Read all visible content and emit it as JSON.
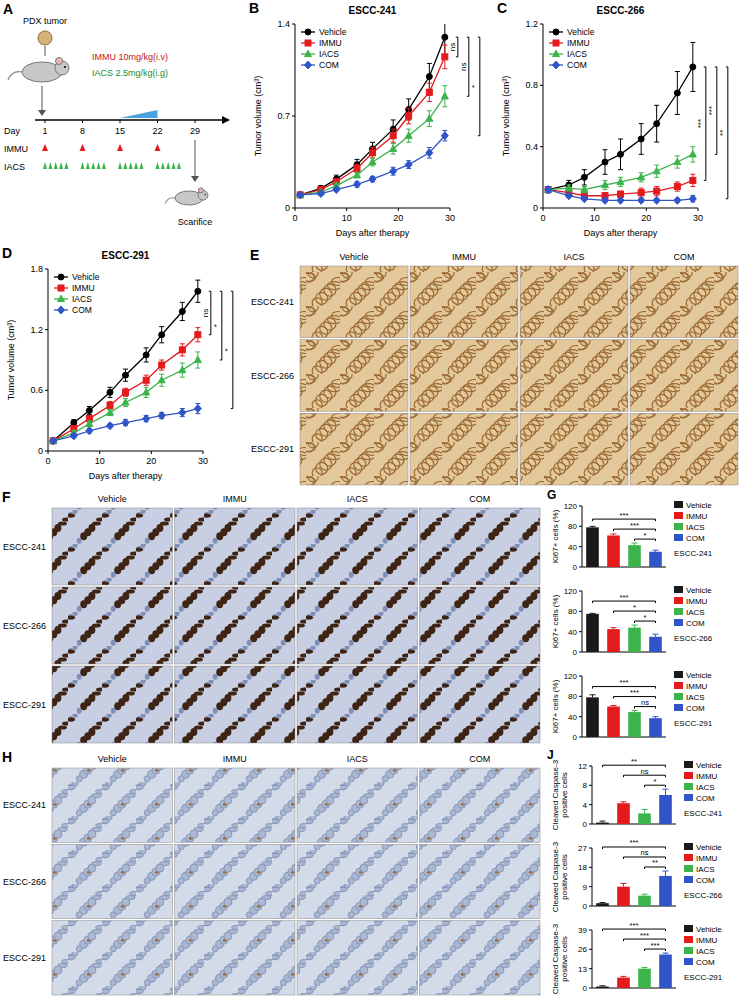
{
  "schematic": {
    "panel": "A",
    "title": "PDX tumor",
    "doses": [
      "IMMU 10mg/kg(i.v)",
      "IACS 2.5mg/kg(i.g)"
    ],
    "day_label": "Day",
    "days": [
      1,
      8,
      15,
      22,
      29
    ],
    "rows": [
      "IMMU",
      "IACS"
    ],
    "immu_days": [
      1,
      8,
      15,
      22
    ],
    "iacs_days": [
      1,
      2,
      3,
      4,
      5,
      8,
      9,
      10,
      11,
      12,
      15,
      16,
      17,
      18,
      19,
      22,
      23,
      24,
      25,
      26
    ],
    "end_label": "Scarifice"
  },
  "chart_data": [
    {
      "panel": "B",
      "type": "line",
      "title": "ESCC-241",
      "x_label": "Days after therapy",
      "y_label": "Tumor volume (cm³)",
      "x": [
        1,
        5,
        8,
        12,
        15,
        19,
        22,
        26,
        29
      ],
      "xlim": [
        0,
        30
      ],
      "xticks": [
        0,
        10,
        20,
        30
      ],
      "ylim": [
        0,
        1.4
      ],
      "yticks": [
        0,
        0.7,
        1.4
      ],
      "legend": "upper left",
      "series": [
        {
          "name": "Vehicle",
          "color": "#000000",
          "marker": "circle",
          "values": [
            0.1,
            0.15,
            0.22,
            0.33,
            0.45,
            0.6,
            0.75,
            1.0,
            1.3
          ],
          "errors": [
            0.01,
            0.02,
            0.03,
            0.04,
            0.05,
            0.07,
            0.08,
            0.1,
            0.15
          ]
        },
        {
          "name": "IMMU",
          "color": "#e41a1c",
          "marker": "square",
          "values": [
            0.1,
            0.14,
            0.2,
            0.3,
            0.42,
            0.55,
            0.7,
            0.88,
            1.15
          ],
          "errors": [
            0.01,
            0.02,
            0.02,
            0.03,
            0.04,
            0.05,
            0.06,
            0.07,
            0.09
          ]
        },
        {
          "name": "IACS",
          "color": "#3cb44b",
          "marker": "triangle",
          "values": [
            0.1,
            0.12,
            0.17,
            0.25,
            0.35,
            0.45,
            0.55,
            0.68,
            0.85
          ],
          "errors": [
            0.01,
            0.01,
            0.02,
            0.02,
            0.03,
            0.04,
            0.05,
            0.06,
            0.08
          ]
        },
        {
          "name": "COM",
          "color": "#2f55c8",
          "marker": "diamond",
          "values": [
            0.1,
            0.11,
            0.14,
            0.18,
            0.22,
            0.28,
            0.33,
            0.42,
            0.55
          ],
          "errors": [
            0.01,
            0.01,
            0.01,
            0.02,
            0.02,
            0.03,
            0.03,
            0.04,
            0.04
          ]
        }
      ],
      "annotations": [
        "ns",
        "ns",
        "*"
      ]
    },
    {
      "panel": "C",
      "type": "line",
      "title": "ESCC-266",
      "x_label": "Days after therapy",
      "y_label": "Tumor volume (cm³)",
      "x": [
        1,
        5,
        8,
        12,
        15,
        19,
        22,
        26,
        29
      ],
      "xlim": [
        0,
        30
      ],
      "xticks": [
        0,
        10,
        20,
        30
      ],
      "ylim": [
        0,
        1.2
      ],
      "yticks": [
        0,
        0.4,
        0.8,
        1.2
      ],
      "legend": "upper left",
      "series": [
        {
          "name": "Vehicle",
          "color": "#000000",
          "marker": "circle",
          "values": [
            0.12,
            0.15,
            0.2,
            0.3,
            0.35,
            0.45,
            0.55,
            0.75,
            0.92
          ],
          "errors": [
            0.02,
            0.03,
            0.05,
            0.08,
            0.1,
            0.1,
            0.12,
            0.14,
            0.16
          ]
        },
        {
          "name": "IMMU",
          "color": "#e41a1c",
          "marker": "square",
          "values": [
            0.12,
            0.1,
            0.08,
            0.08,
            0.09,
            0.1,
            0.11,
            0.14,
            0.18
          ],
          "errors": [
            0.02,
            0.02,
            0.02,
            0.02,
            0.02,
            0.03,
            0.03,
            0.03,
            0.04
          ]
        },
        {
          "name": "IACS",
          "color": "#3cb44b",
          "marker": "triangle",
          "values": [
            0.12,
            0.13,
            0.12,
            0.15,
            0.17,
            0.2,
            0.24,
            0.3,
            0.35
          ],
          "errors": [
            0.02,
            0.02,
            0.02,
            0.03,
            0.03,
            0.03,
            0.04,
            0.04,
            0.05
          ]
        },
        {
          "name": "COM",
          "color": "#2f55c8",
          "marker": "diamond",
          "values": [
            0.12,
            0.08,
            0.06,
            0.05,
            0.05,
            0.05,
            0.05,
            0.05,
            0.06
          ],
          "errors": [
            0.02,
            0.01,
            0.01,
            0.01,
            0.01,
            0.01,
            0.01,
            0.01,
            0.02
          ]
        }
      ],
      "annotations": [
        "***",
        "***",
        "**"
      ]
    },
    {
      "panel": "D",
      "type": "line",
      "title": "ESCC-291",
      "x_label": "Days after therapy",
      "y_label": "Tumor volume (cm³)",
      "x": [
        1,
        5,
        8,
        12,
        15,
        19,
        22,
        26,
        29
      ],
      "xlim": [
        0,
        30
      ],
      "xticks": [
        0,
        10,
        20,
        30
      ],
      "ylim": [
        0,
        1.8
      ],
      "yticks": [
        0,
        0.6,
        1.2,
        1.8
      ],
      "legend": "upper left",
      "series": [
        {
          "name": "Vehicle",
          "color": "#000000",
          "marker": "circle",
          "values": [
            0.1,
            0.28,
            0.4,
            0.58,
            0.75,
            0.95,
            1.15,
            1.38,
            1.58
          ],
          "errors": [
            0.02,
            0.03,
            0.04,
            0.05,
            0.06,
            0.07,
            0.08,
            0.09,
            0.11
          ]
        },
        {
          "name": "IMMU",
          "color": "#e41a1c",
          "marker": "square",
          "values": [
            0.1,
            0.22,
            0.32,
            0.45,
            0.58,
            0.7,
            0.85,
            1.0,
            1.15
          ],
          "errors": [
            0.02,
            0.03,
            0.03,
            0.04,
            0.04,
            0.05,
            0.05,
            0.06,
            0.07
          ]
        },
        {
          "name": "IACS",
          "color": "#3cb44b",
          "marker": "triangle",
          "values": [
            0.1,
            0.18,
            0.27,
            0.38,
            0.48,
            0.58,
            0.7,
            0.8,
            0.9
          ],
          "errors": [
            0.02,
            0.02,
            0.03,
            0.03,
            0.04,
            0.05,
            0.06,
            0.07,
            0.08
          ]
        },
        {
          "name": "COM",
          "color": "#2f55c8",
          "marker": "diamond",
          "values": [
            0.1,
            0.15,
            0.2,
            0.25,
            0.28,
            0.32,
            0.35,
            0.38,
            0.42
          ],
          "errors": [
            0.01,
            0.02,
            0.02,
            0.02,
            0.03,
            0.03,
            0.03,
            0.04,
            0.05
          ]
        }
      ],
      "annotations": [
        "ns",
        "*",
        "*"
      ]
    },
    {
      "panel": "G",
      "type": "bar",
      "title": "ESCC-241",
      "y_label": "Ki67+ cells (%)",
      "categories": [
        "Vehicle",
        "IMMU",
        "IACS",
        "COM"
      ],
      "colors": [
        "#1a1a1a",
        "#e41a1c",
        "#3cb44b",
        "#2f55c8"
      ],
      "values": [
        78,
        62,
        43,
        30
      ],
      "errors": [
        2,
        3,
        4,
        3
      ],
      "ylim": [
        0,
        120
      ],
      "yticks": [
        0,
        40,
        80,
        120
      ],
      "legend": "right",
      "tick_labels": "y",
      "annotations": [
        "***",
        "***",
        "*"
      ]
    },
    {
      "type": "bar",
      "title": "ESCC-266",
      "y_label": "Ki67+ cells (%)",
      "categories": [
        "Vehicle",
        "IMMU",
        "IACS",
        "COM"
      ],
      "colors": [
        "#1a1a1a",
        "#e41a1c",
        "#3cb44b",
        "#2f55c8"
      ],
      "values": [
        75,
        45,
        48,
        30
      ],
      "errors": [
        1,
        3,
        5,
        5
      ],
      "ylim": [
        0,
        120
      ],
      "yticks": [
        0,
        40,
        80,
        120
      ],
      "legend": "right",
      "tick_labels": "y",
      "annotations": [
        "***",
        "*",
        "*"
      ]
    },
    {
      "type": "bar",
      "title": "ESCC-291",
      "y_label": "Ki67+ cells (%)",
      "categories": [
        "Vehicle",
        "IMMU",
        "IACS",
        "COM"
      ],
      "colors": [
        "#1a1a1a",
        "#e41a1c",
        "#3cb44b",
        "#2f55c8"
      ],
      "values": [
        78,
        60,
        49,
        37
      ],
      "errors": [
        5,
        2,
        3,
        3
      ],
      "ylim": [
        0,
        120
      ],
      "yticks": [
        0,
        40,
        80,
        120
      ],
      "legend": "right",
      "tick_labels": "y",
      "annotations": [
        "***",
        "***",
        "ns"
      ]
    },
    {
      "panel": "J",
      "type": "bar",
      "title": "ESCC-241",
      "y_label": "Cleaved Caspase-3 positive cells",
      "categories": [
        "Vehicle",
        "IMMU",
        "IACS",
        "COM"
      ],
      "colors": [
        "#1a1a1a",
        "#e41a1c",
        "#3cb44b",
        "#2f55c8"
      ],
      "values": [
        0.3,
        4.3,
        2.2,
        6
      ],
      "errors": [
        0.3,
        0.3,
        0.8,
        1.2
      ],
      "ylim": [
        0,
        12
      ],
      "yticks": [
        0,
        4,
        8,
        12
      ],
      "legend": "right",
      "tick_labels": "y",
      "annotations": [
        "**",
        "ns",
        "*"
      ]
    },
    {
      "type": "bar",
      "title": "ESCC-266",
      "y_label": "Cleaved Caspase-3 positive cells",
      "categories": [
        "Vehicle",
        "IMMU",
        "IACS",
        "COM"
      ],
      "colors": [
        "#1a1a1a",
        "#e41a1c",
        "#3cb44b",
        "#2f55c8"
      ],
      "values": [
        1.3,
        9,
        4.8,
        14
      ],
      "errors": [
        0.3,
        1.5,
        0.7,
        2.3
      ],
      "ylim": [
        0,
        27
      ],
      "yticks": [
        0,
        9,
        18,
        27
      ],
      "legend": "right",
      "tick_labels": "y",
      "annotations": [
        "***",
        "ns",
        "**"
      ]
    },
    {
      "type": "bar",
      "title": "ESCC-291",
      "y_label": "Cleaved Caspase-3 positive cells",
      "categories": [
        "Vehicle",
        "IMMU",
        "IACS",
        "COM"
      ],
      "colors": [
        "#1a1a1a",
        "#e41a1c",
        "#3cb44b",
        "#2f55c8"
      ],
      "values": [
        1,
        7,
        13,
        22.5
      ],
      "errors": [
        0.5,
        0.8,
        0.8,
        1
      ],
      "ylim": [
        0,
        39
      ],
      "yticks": [
        0,
        13,
        26,
        39
      ],
      "legend": "right",
      "tick_labels": "y",
      "annotations": [
        "***",
        "***",
        "***"
      ]
    }
  ],
  "image_panels": [
    {
      "panel": "E",
      "columns": [
        "Vehicle",
        "IMMU",
        "IACS",
        "COM"
      ],
      "rows": [
        "ESCC-241",
        "ESCC-266",
        "ESCC-291"
      ]
    },
    {
      "panel": "F",
      "columns": [
        "Vehicle",
        "IMMU",
        "IACS",
        "COM"
      ],
      "rows": [
        "ESCC-241",
        "ESCC-266",
        "ESCC-291"
      ]
    },
    {
      "panel": "H",
      "columns": [
        "Vehicle",
        "IMMU",
        "IACS",
        "COM"
      ],
      "rows": [
        "ESCC-241",
        "ESCC-266",
        "ESCC-291"
      ]
    }
  ]
}
